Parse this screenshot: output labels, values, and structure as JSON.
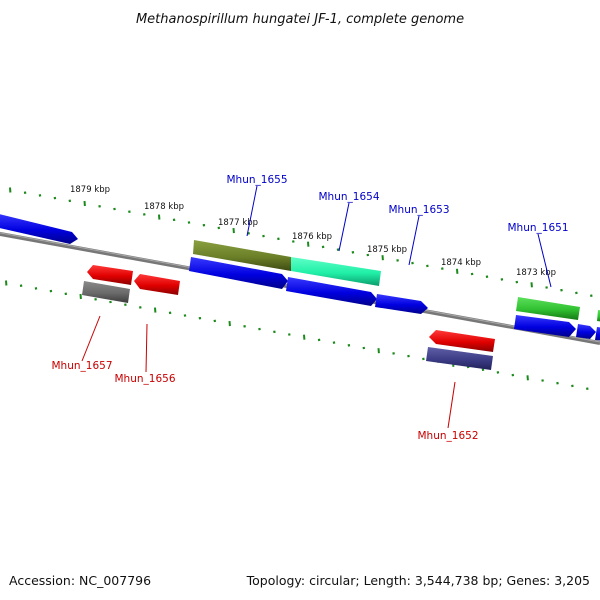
{
  "title": "Methanospirillum hungatei JF-1, complete genome",
  "footer": {
    "accession": "Accession: NC_007796",
    "summary": "Topology: circular; Length: 3,544,738 bp; Genes: 3,205"
  },
  "colors": {
    "backbone": "#7a7a7a",
    "tick": "#1a8a1a",
    "top_label": "#0000c8",
    "bottom_label": "#c80000"
  },
  "kbp_markers": [
    "1879 kbp",
    "1878 kbp",
    "1877 kbp",
    "1876 kbp",
    "1875 kbp",
    "1874 kbp",
    "1873 kbp"
  ],
  "gene_labels": {
    "top": [
      "Mhun_1655",
      "Mhun_1654",
      "Mhun_1653",
      "Mhun_1651"
    ],
    "bottom": [
      "Mhun_1657",
      "Mhun_1656",
      "Mhun_1652"
    ]
  }
}
